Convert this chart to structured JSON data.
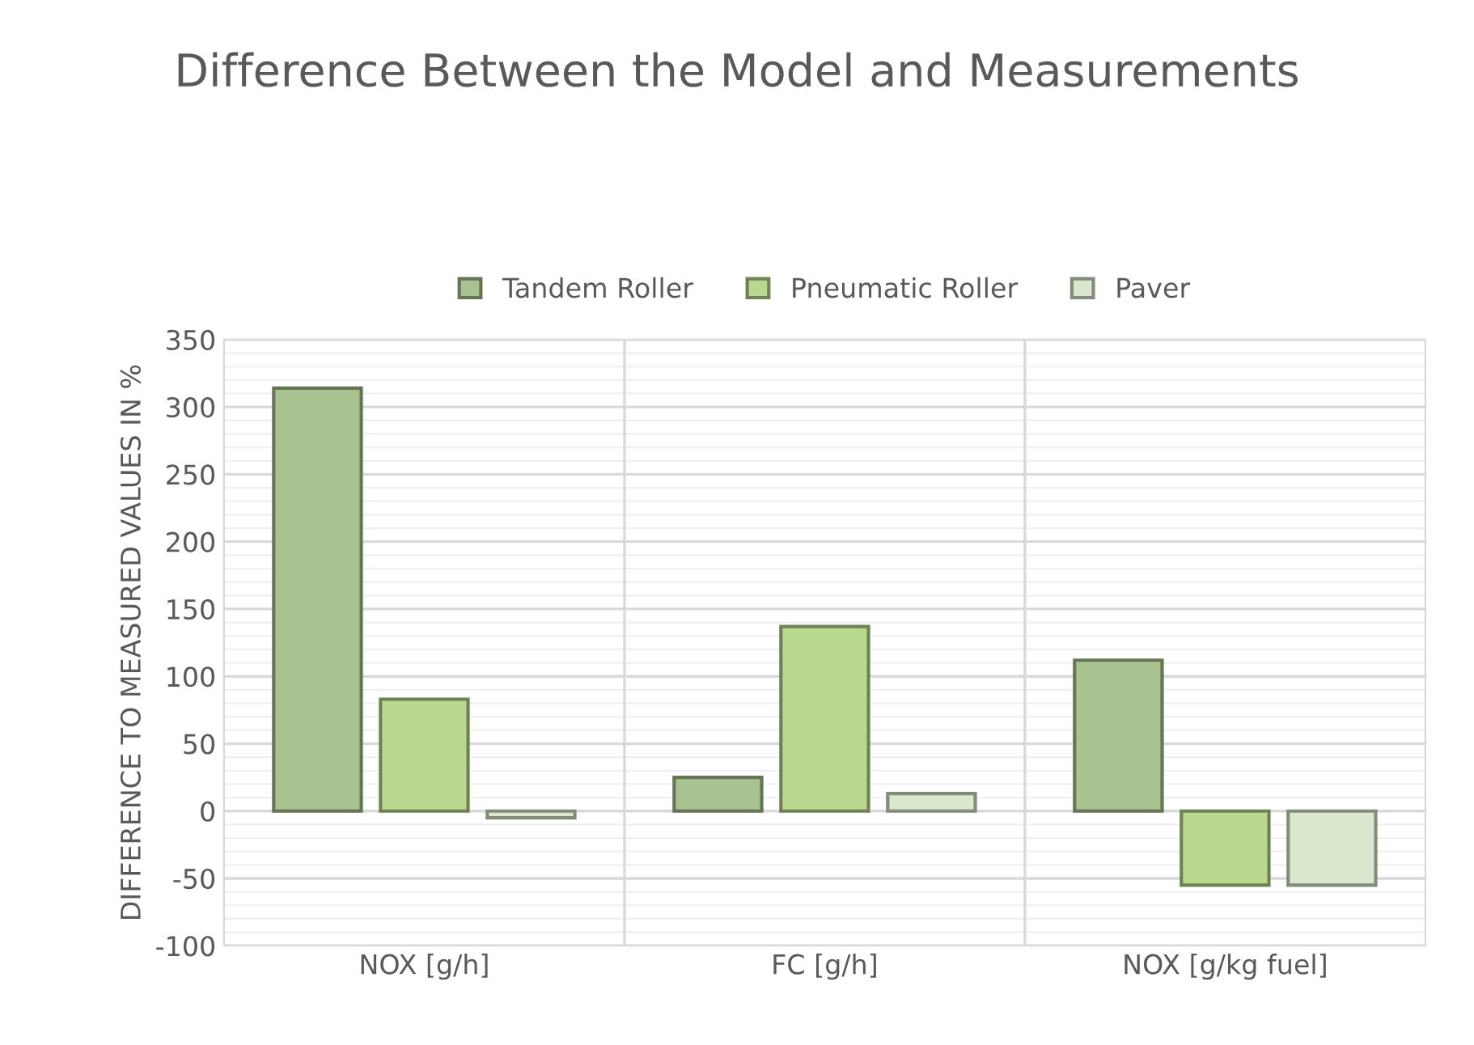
{
  "chart_data": {
    "type": "bar",
    "title": "Difference Between the Model and Measurements",
    "categories": [
      "NOX [g/h]",
      "FC [g/h]",
      "NOX [g/kg fuel]"
    ],
    "series": [
      {
        "name": "Tandem Roller",
        "color": "#a9c390",
        "values": [
          314,
          25,
          112
        ]
      },
      {
        "name": "Pneumatic Roller",
        "color": "#b9d98f",
        "values": [
          83,
          137,
          -55
        ]
      },
      {
        "name": "Paver",
        "color": "#dbe7cc",
        "values": [
          -5,
          13,
          -55
        ]
      }
    ],
    "ylabel": "DIFFERENCE TO MEASURED VALUES IN %",
    "ylim": [
      -100,
      350
    ],
    "yticks": [
      -100,
      -50,
      0,
      50,
      100,
      150,
      200,
      250,
      300,
      350
    ],
    "grid": true,
    "legend": "top"
  }
}
